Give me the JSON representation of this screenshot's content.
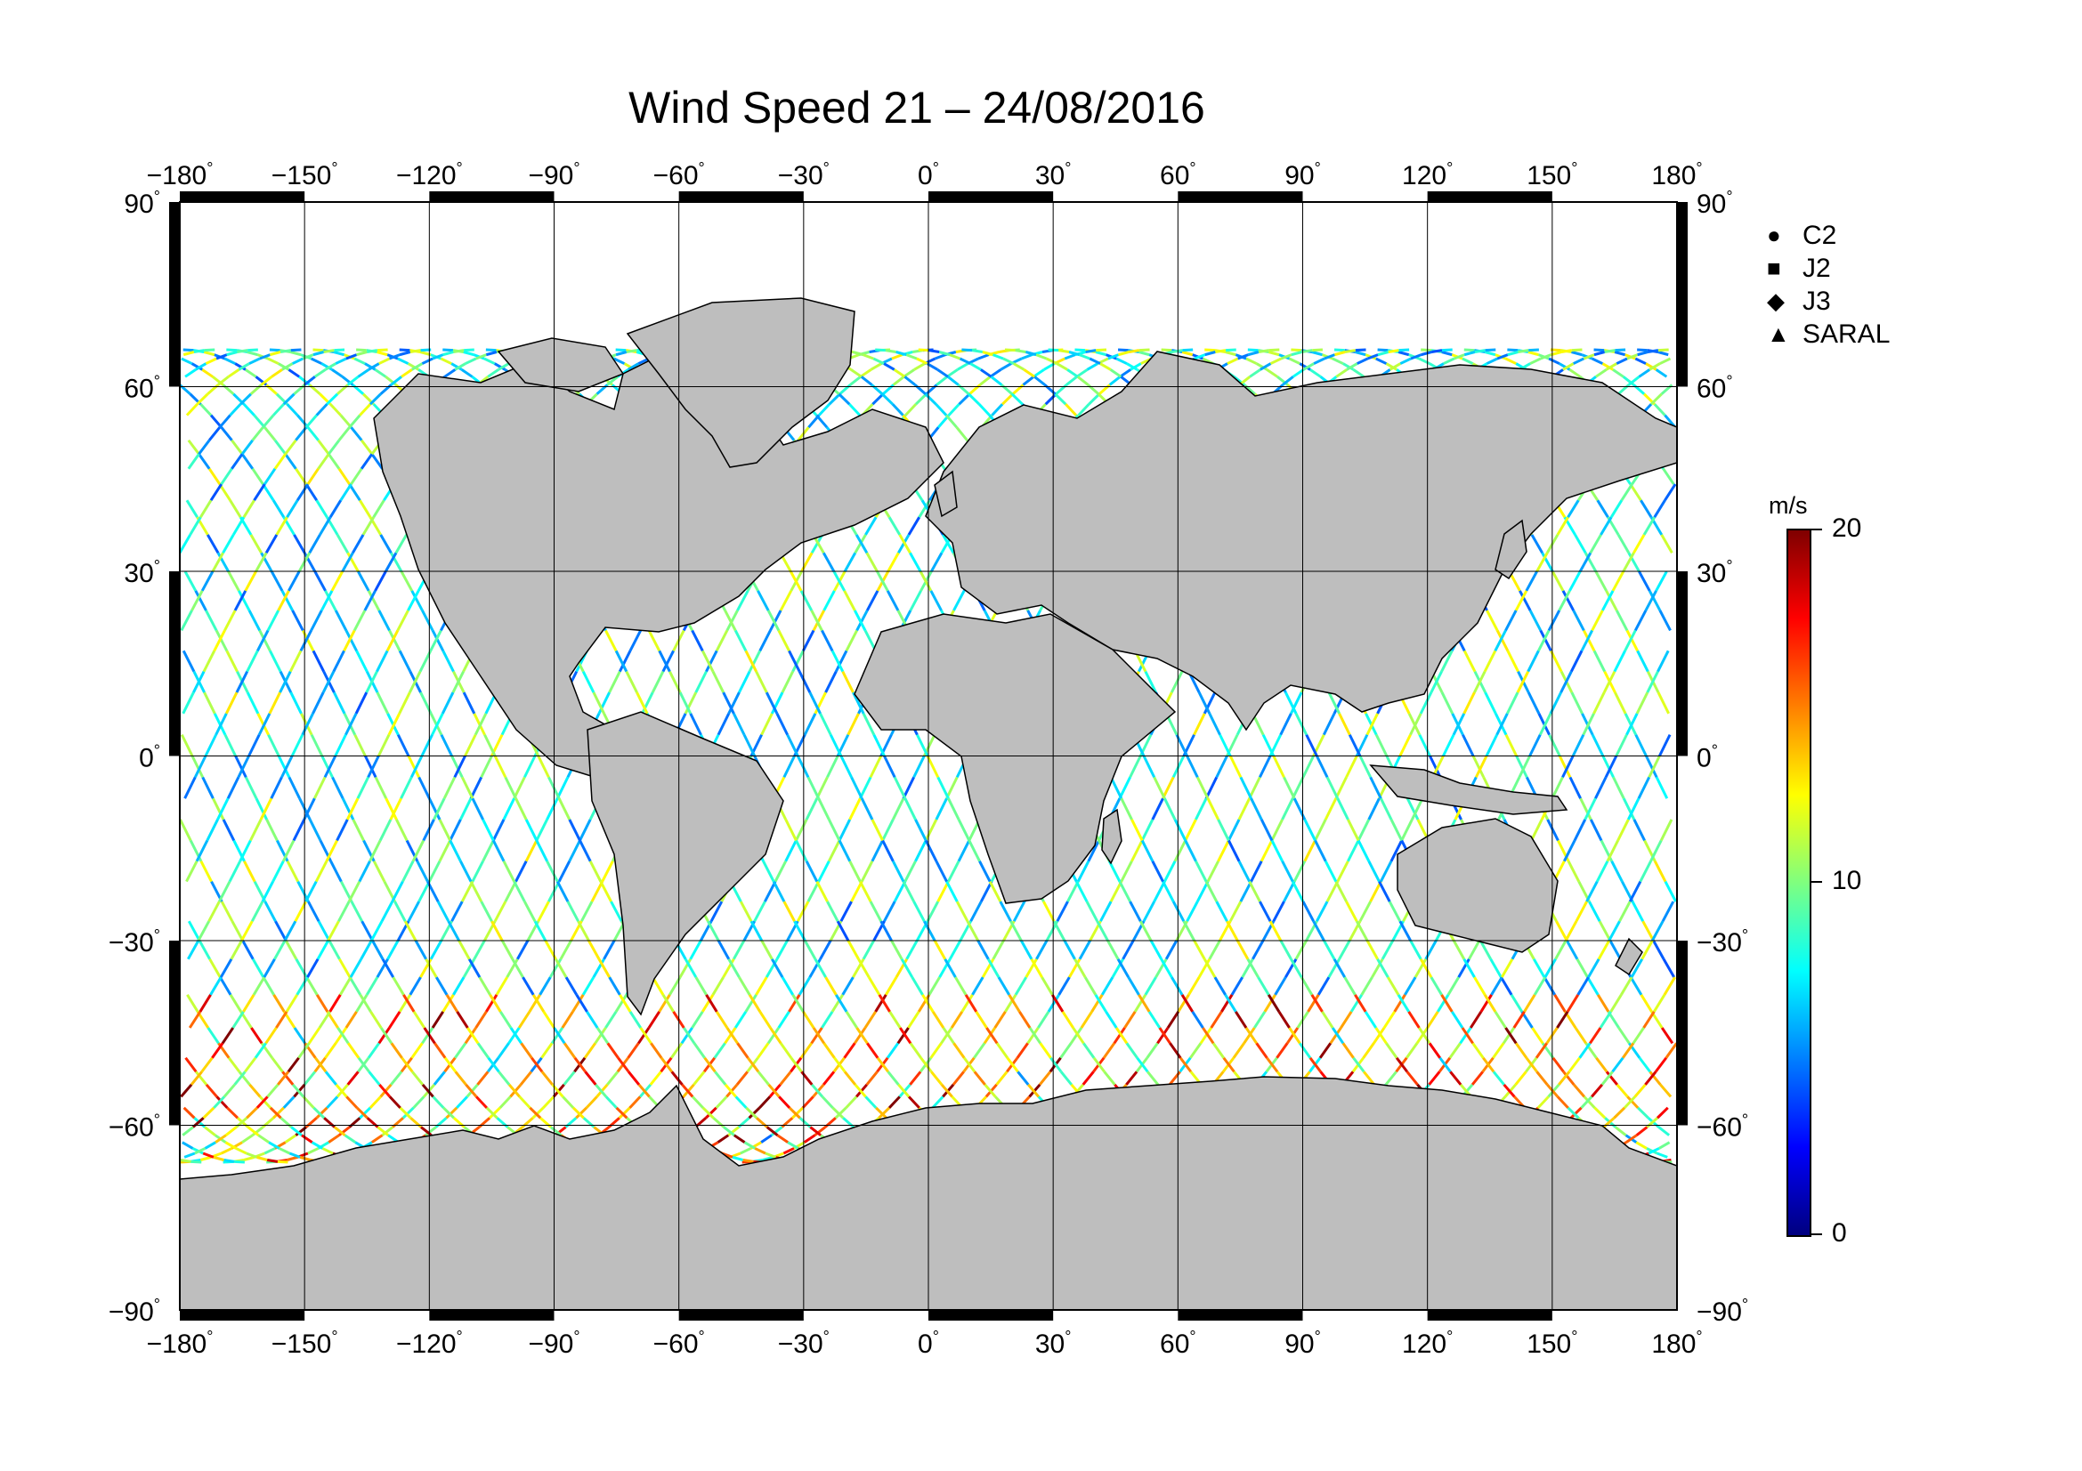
{
  "title": "Wind Speed 21 – 24/08/2016",
  "map": {
    "lon_ticks": [
      "−180",
      "−150",
      "−120",
      "−90",
      "−60",
      "−30",
      "0",
      "30",
      "60",
      "90",
      "120",
      "150",
      "180"
    ],
    "lat_ticks": [
      "90",
      "60",
      "30",
      "0",
      "−30",
      "−60",
      "−90"
    ],
    "degree_symbol": "°",
    "land_color": "#bebebe",
    "ocean_color": "#ffffff",
    "grid_color": "#000000"
  },
  "legend": {
    "items": [
      {
        "label": "C2",
        "symbol": "●"
      },
      {
        "label": "J2",
        "symbol": "■"
      },
      {
        "label": "J3",
        "symbol": "◆"
      },
      {
        "label": "SARAL",
        "symbol": "▲"
      }
    ]
  },
  "colorbar": {
    "unit": "m/s",
    "min": 0,
    "max": 20,
    "tick_labels": [
      "20",
      "10",
      "0"
    ],
    "colors": [
      "#00007f",
      "#0000ff",
      "#007fff",
      "#00ffff",
      "#7fff7f",
      "#ffff00",
      "#ff7f00",
      "#ff0000",
      "#7f0000"
    ]
  }
}
